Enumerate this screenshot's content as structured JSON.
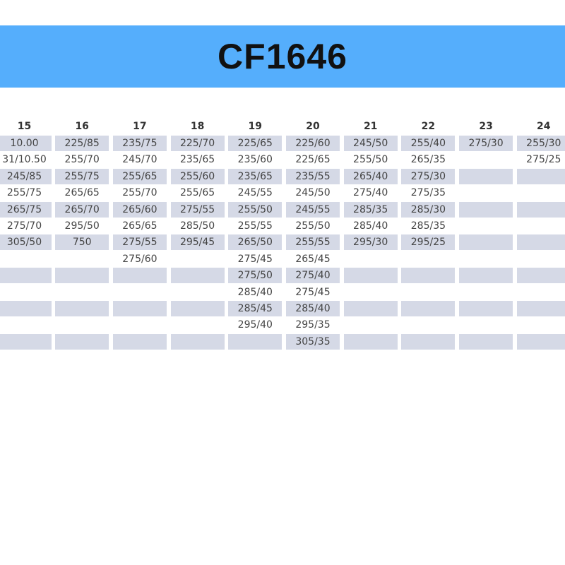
{
  "title": "CF1646",
  "colors": {
    "banner": "#55aefc",
    "row_shade": "#d5d9e6"
  },
  "columns": [
    {
      "header": "15",
      "sizes": [
        "10.00",
        "31/10.50",
        "245/85",
        "255/75",
        "265/75",
        "275/70",
        "305/50"
      ]
    },
    {
      "header": "16",
      "sizes": [
        "225/85",
        "255/70",
        "255/75",
        "265/65",
        "265/70",
        "295/50",
        "750"
      ]
    },
    {
      "header": "17",
      "sizes": [
        "235/75",
        "245/70",
        "255/65",
        "255/70",
        "265/60",
        "265/65",
        "275/55",
        "275/60"
      ]
    },
    {
      "header": "18",
      "sizes": [
        "225/70",
        "235/65",
        "255/60",
        "255/65",
        "275/55",
        "285/50",
        "295/45"
      ]
    },
    {
      "header": "19",
      "sizes": [
        "225/65",
        "235/60",
        "235/65",
        "245/55",
        "255/50",
        "255/55",
        "265/50",
        "275/45",
        "275/50",
        "285/40",
        "285/45",
        "295/40"
      ]
    },
    {
      "header": "20",
      "sizes": [
        "225/60",
        "225/65",
        "235/55",
        "245/50",
        "245/55",
        "255/50",
        "255/55",
        "265/45",
        "275/40",
        "275/45",
        "285/40",
        "295/35",
        "305/35"
      ]
    },
    {
      "header": "21",
      "sizes": [
        "245/50",
        "255/50",
        "265/40",
        "275/40",
        "285/35",
        "285/40",
        "295/30"
      ]
    },
    {
      "header": "22",
      "sizes": [
        "255/40",
        "265/35",
        "275/30",
        "275/35",
        "285/30",
        "285/35",
        "295/25"
      ]
    },
    {
      "header": "23",
      "sizes": [
        "275/30"
      ]
    },
    {
      "header": "24",
      "sizes": [
        "255/30",
        "275/25"
      ]
    }
  ]
}
